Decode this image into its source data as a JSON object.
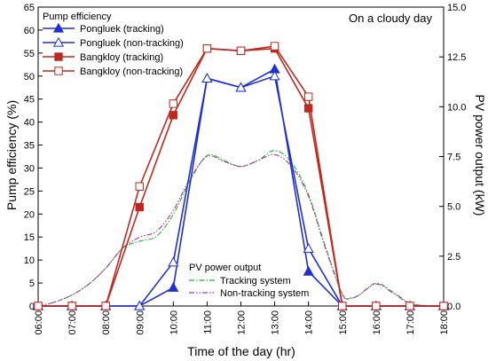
{
  "chart_data": {
    "type": "line",
    "annotation": "On a cloudy day",
    "xlabel": "Time of the day (hr)",
    "ylabel": "Pump efficiency (%)",
    "y2label": "PV power output (kW)",
    "x_ticks": [
      "06:00",
      "07:00",
      "08:00",
      "09:00",
      "10:00",
      "11:00",
      "12:00",
      "13:00",
      "14:00",
      "15:00",
      "16:00",
      "17:00",
      "18:00"
    ],
    "xlim": [
      6,
      18
    ],
    "ylim": [
      0,
      65
    ],
    "y_ticks": [
      "0",
      "5",
      "10",
      "15",
      "20",
      "25",
      "30",
      "35",
      "40",
      "45",
      "50",
      "55",
      "60",
      "65"
    ],
    "y2lim": [
      0,
      15
    ],
    "y2_ticks": [
      "0.0",
      "2.5",
      "5.0",
      "7.5",
      "10.0",
      "12.5",
      "15.0"
    ],
    "legend_title": "Pump efficiency",
    "legend2_title": "PV power output",
    "series": [
      {
        "name": "Pongluek (tracking)",
        "color": "#1f2fd6",
        "marker": "filled-triangle",
        "x": [
          6,
          7,
          8,
          9,
          10,
          11,
          12,
          13,
          14,
          15,
          16,
          17,
          18
        ],
        "y": [
          0,
          0,
          0,
          0,
          4,
          49.5,
          47.5,
          51.5,
          7.5,
          0,
          0,
          0,
          0
        ]
      },
      {
        "name": "Pongluek (non-tracking)",
        "color": "#1f2fd6",
        "marker": "open-triangle",
        "x": [
          6,
          7,
          8,
          9,
          10,
          11,
          12,
          13,
          14,
          15,
          16,
          17,
          18
        ],
        "y": [
          0,
          0,
          0,
          0,
          9.5,
          49.5,
          47.5,
          50,
          12.5,
          0,
          0,
          0,
          0
        ]
      },
      {
        "name": "Bangkloy (tracking)",
        "color": "#c0281e",
        "marker": "filled-square",
        "x": [
          6,
          7,
          8,
          9,
          10,
          11,
          12,
          13,
          14,
          15,
          16,
          17,
          18
        ],
        "y": [
          0,
          0,
          0,
          21.5,
          41.5,
          56,
          55.5,
          56,
          43,
          0,
          0,
          0,
          0
        ]
      },
      {
        "name": "Bangkloy (non-tracking)",
        "color": "#c0281e",
        "marker": "open-square",
        "x": [
          6,
          7,
          8,
          9,
          10,
          11,
          12,
          13,
          14,
          15,
          16,
          17,
          18
        ],
        "y": [
          0,
          0,
          0,
          26,
          44,
          56,
          55.5,
          56.5,
          45.5,
          0,
          0,
          0,
          0
        ]
      }
    ],
    "pv_series": [
      {
        "name": "Tracking system",
        "color": "#22bb22",
        "dash": "dash-dot",
        "x": [
          6,
          6.5,
          7,
          7.5,
          8,
          8.5,
          9,
          9.5,
          10,
          10.5,
          11,
          11.5,
          12,
          12.5,
          13,
          13.5,
          14,
          14.5,
          15,
          15.25,
          15.5,
          16,
          16.5,
          17,
          17.5,
          18
        ],
        "y": [
          0,
          0.2,
          0.55,
          1.1,
          1.9,
          2.9,
          3.25,
          3.5,
          4.6,
          6.3,
          7.55,
          7.3,
          7.0,
          7.3,
          7.8,
          7.2,
          5.6,
          3.0,
          0.6,
          0.4,
          0.55,
          1.15,
          0.7,
          0.15,
          0.02,
          0
        ]
      },
      {
        "name": "Non-tracking system",
        "color": "#b030b0",
        "dash": "dash-dot-dot",
        "x": [
          6,
          6.5,
          7,
          7.5,
          8,
          8.5,
          9,
          9.5,
          10,
          10.5,
          11,
          11.5,
          12,
          12.5,
          13,
          13.5,
          14,
          14.5,
          15,
          15.25,
          15.5,
          16,
          16.5,
          17,
          17.5,
          18
        ],
        "y": [
          0,
          0.2,
          0.55,
          1.1,
          1.9,
          2.9,
          3.45,
          3.75,
          4.8,
          6.4,
          7.5,
          7.25,
          7.0,
          7.3,
          7.6,
          7.0,
          5.5,
          2.9,
          0.6,
          0.4,
          0.55,
          1.1,
          0.65,
          0.12,
          0.02,
          0
        ]
      }
    ]
  }
}
